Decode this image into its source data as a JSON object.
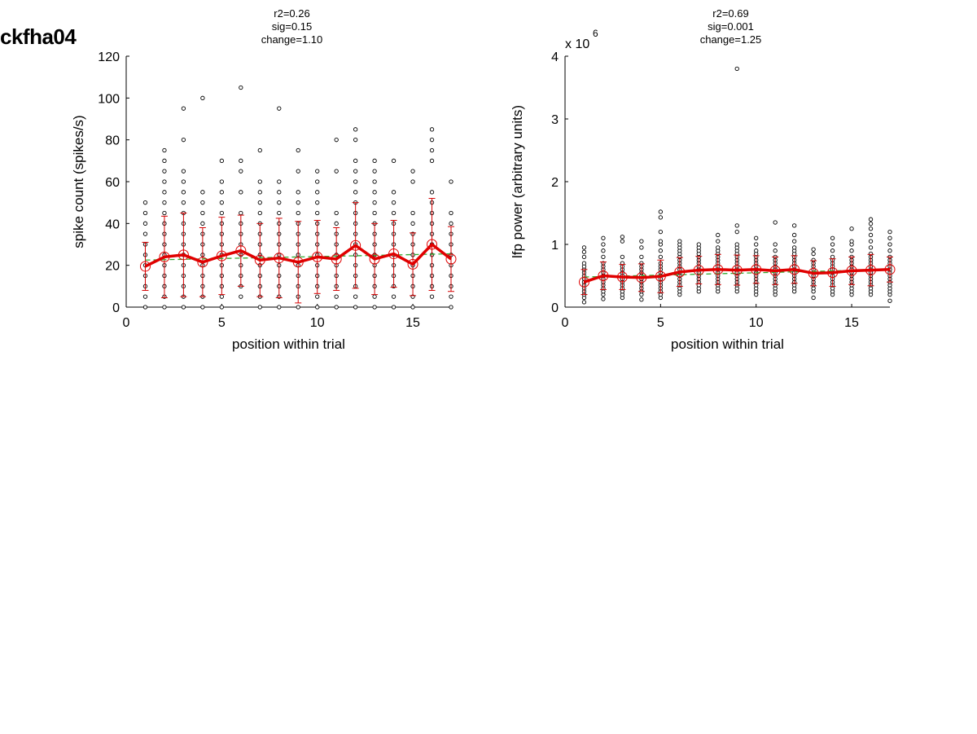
{
  "figure": {
    "title": "ckfha04"
  },
  "chart_data": [
    {
      "type": "scatter",
      "title_lines": [
        "r2=0.26",
        "sig=0.15",
        "change=1.10"
      ],
      "xlabel": "position within trial",
      "ylabel": "spike count (spikes/s)",
      "exponent_label": "",
      "xlim": [
        0,
        17
      ],
      "ylim": [
        0,
        120
      ],
      "xticks": [
        0,
        5,
        10,
        15
      ],
      "yticks": [
        0,
        20,
        40,
        60,
        80,
        100,
        120
      ],
      "ytick_labels": [
        "0",
        "20",
        "40",
        "60",
        "80",
        "100",
        "120"
      ],
      "mean": {
        "x": [
          1,
          2,
          3,
          4,
          5,
          6,
          7,
          8,
          9,
          10,
          11,
          12,
          13,
          14,
          15,
          16,
          17
        ],
        "y": [
          19.5,
          24,
          25,
          21.5,
          24.5,
          27,
          22.5,
          23.5,
          21.5,
          24,
          23,
          29.5,
          23,
          25.5,
          20.5,
          30,
          23
        ]
      },
      "error": [
        11.5,
        19.5,
        20,
        16.5,
        18.5,
        17,
        17.5,
        19,
        19.5,
        17.5,
        15,
        20.5,
        17,
        16,
        15,
        22,
        15.5
      ],
      "fit": {
        "x": [
          1,
          17
        ],
        "y": [
          22.5,
          25.5
        ]
      },
      "points": [
        {
          "x": 1,
          "y": [
            0,
            5,
            10,
            15,
            20,
            25,
            30,
            35,
            40,
            45,
            50
          ]
        },
        {
          "x": 2,
          "y": [
            0,
            5,
            10,
            15,
            20,
            25,
            30,
            35,
            40,
            45,
            50,
            55,
            60,
            65,
            70,
            75
          ]
        },
        {
          "x": 3,
          "y": [
            0,
            5,
            10,
            15,
            20,
            25,
            30,
            35,
            40,
            45,
            50,
            55,
            60,
            65,
            80,
            95
          ]
        },
        {
          "x": 4,
          "y": [
            0,
            5,
            10,
            15,
            20,
            25,
            30,
            35,
            40,
            45,
            50,
            55,
            100
          ]
        },
        {
          "x": 5,
          "y": [
            0,
            5,
            10,
            15,
            20,
            25,
            30,
            35,
            40,
            45,
            50,
            55,
            60,
            70
          ]
        },
        {
          "x": 6,
          "y": [
            5,
            10,
            15,
            20,
            25,
            30,
            35,
            40,
            45,
            55,
            65,
            70,
            105
          ]
        },
        {
          "x": 7,
          "y": [
            0,
            5,
            10,
            15,
            20,
            25,
            30,
            35,
            40,
            45,
            50,
            55,
            60,
            75
          ]
        },
        {
          "x": 8,
          "y": [
            0,
            5,
            10,
            15,
            20,
            25,
            30,
            35,
            40,
            45,
            50,
            55,
            60,
            95
          ]
        },
        {
          "x": 9,
          "y": [
            0,
            5,
            10,
            15,
            20,
            25,
            30,
            35,
            40,
            45,
            50,
            55,
            65,
            75
          ]
        },
        {
          "x": 10,
          "y": [
            0,
            5,
            10,
            15,
            20,
            25,
            30,
            35,
            40,
            45,
            50,
            55,
            60,
            65
          ]
        },
        {
          "x": 11,
          "y": [
            0,
            5,
            10,
            15,
            20,
            25,
            30,
            35,
            40,
            45,
            65,
            80
          ]
        },
        {
          "x": 12,
          "y": [
            0,
            5,
            10,
            15,
            20,
            25,
            30,
            35,
            40,
            45,
            50,
            55,
            60,
            65,
            70,
            80,
            85
          ]
        },
        {
          "x": 13,
          "y": [
            0,
            5,
            10,
            15,
            20,
            25,
            30,
            35,
            40,
            45,
            50,
            55,
            60,
            65,
            70
          ]
        },
        {
          "x": 14,
          "y": [
            0,
            5,
            10,
            15,
            20,
            25,
            30,
            35,
            40,
            45,
            50,
            55,
            70
          ]
        },
        {
          "x": 15,
          "y": [
            0,
            5,
            10,
            15,
            20,
            25,
            30,
            35,
            40,
            45,
            60,
            65
          ]
        },
        {
          "x": 16,
          "y": [
            5,
            10,
            15,
            20,
            25,
            30,
            35,
            40,
            45,
            50,
            55,
            70,
            75,
            80,
            85
          ]
        },
        {
          "x": 17,
          "y": [
            0,
            5,
            10,
            15,
            20,
            25,
            30,
            35,
            40,
            45,
            60
          ]
        }
      ]
    },
    {
      "type": "scatter",
      "title_lines": [
        "r2=0.69",
        "sig=0.001",
        "change=1.25"
      ],
      "xlabel": "position within trial",
      "ylabel": "lfp power (arbitrary units)",
      "exponent_label": "x 10",
      "exponent_sup": "6",
      "xlim": [
        0,
        17
      ],
      "ylim": [
        0,
        4000000
      ],
      "xticks": [
        0,
        5,
        10,
        15
      ],
      "yticks": [
        0,
        1000000,
        2000000,
        3000000,
        4000000
      ],
      "ytick_labels": [
        "0",
        "1",
        "2",
        "3",
        "4"
      ],
      "mean": {
        "x": [
          1,
          2,
          3,
          4,
          5,
          6,
          7,
          8,
          9,
          10,
          11,
          12,
          13,
          14,
          15,
          16,
          17
        ],
        "y": [
          400000,
          500000,
          480000,
          470000,
          490000,
          560000,
          590000,
          600000,
          590000,
          600000,
          580000,
          600000,
          540000,
          550000,
          580000,
          590000,
          600000
        ]
      },
      "error": [
        200000,
        220000,
        200000,
        220000,
        260000,
        230000,
        220000,
        240000,
        240000,
        220000,
        220000,
        220000,
        200000,
        220000,
        220000,
        250000,
        200000
      ],
      "fit": {
        "x": [
          1,
          17
        ],
        "y": [
          480000,
          600000
        ]
      },
      "points": [
        {
          "x": 1,
          "y": [
            80000,
            150000,
            200000,
            250000,
            300000,
            350000,
            400000,
            450000,
            500000,
            550000,
            600000,
            650000,
            700000,
            800000,
            880000,
            950000
          ]
        },
        {
          "x": 2,
          "y": [
            130000,
            200000,
            250000,
            300000,
            350000,
            400000,
            450000,
            500000,
            550000,
            600000,
            650000,
            700000,
            800000,
            900000,
            1000000,
            1100000
          ]
        },
        {
          "x": 3,
          "y": [
            150000,
            200000,
            250000,
            300000,
            350000,
            400000,
            450000,
            500000,
            550000,
            600000,
            650000,
            700000,
            800000,
            1050000,
            1120000
          ]
        },
        {
          "x": 4,
          "y": [
            120000,
            200000,
            250000,
            300000,
            350000,
            400000,
            450000,
            500000,
            550000,
            600000,
            650000,
            700000,
            800000,
            950000,
            1050000
          ]
        },
        {
          "x": 5,
          "y": [
            150000,
            200000,
            250000,
            300000,
            350000,
            400000,
            450000,
            500000,
            550000,
            600000,
            650000,
            700000,
            800000,
            900000,
            1000000,
            1050000,
            1200000,
            1430000,
            1520000
          ]
        },
        {
          "x": 6,
          "y": [
            200000,
            250000,
            300000,
            350000,
            400000,
            450000,
            500000,
            550000,
            600000,
            650000,
            700000,
            750000,
            800000,
            850000,
            900000,
            950000,
            1000000,
            1050000
          ]
        },
        {
          "x": 7,
          "y": [
            250000,
            300000,
            350000,
            400000,
            450000,
            500000,
            550000,
            600000,
            650000,
            700000,
            750000,
            800000,
            850000,
            900000,
            950000,
            1000000
          ]
        },
        {
          "x": 8,
          "y": [
            250000,
            300000,
            350000,
            400000,
            450000,
            500000,
            550000,
            600000,
            650000,
            700000,
            750000,
            800000,
            850000,
            900000,
            950000,
            1050000,
            1150000
          ]
        },
        {
          "x": 9,
          "y": [
            250000,
            300000,
            350000,
            400000,
            450000,
            500000,
            550000,
            600000,
            650000,
            700000,
            750000,
            800000,
            850000,
            900000,
            950000,
            1000000,
            1200000,
            1300000,
            3800000
          ]
        },
        {
          "x": 10,
          "y": [
            200000,
            250000,
            300000,
            350000,
            400000,
            450000,
            500000,
            550000,
            600000,
            650000,
            700000,
            750000,
            800000,
            850000,
            900000,
            1000000,
            1100000
          ]
        },
        {
          "x": 11,
          "y": [
            200000,
            250000,
            300000,
            350000,
            400000,
            450000,
            500000,
            550000,
            600000,
            650000,
            700000,
            750000,
            800000,
            900000,
            1000000,
            1350000
          ]
        },
        {
          "x": 12,
          "y": [
            250000,
            300000,
            350000,
            400000,
            450000,
            500000,
            550000,
            600000,
            650000,
            700000,
            750000,
            800000,
            850000,
            900000,
            950000,
            1050000,
            1150000,
            1300000
          ]
        },
        {
          "x": 13,
          "y": [
            150000,
            250000,
            300000,
            350000,
            400000,
            450000,
            500000,
            550000,
            600000,
            650000,
            700000,
            750000,
            850000,
            920000
          ]
        },
        {
          "x": 14,
          "y": [
            200000,
            250000,
            300000,
            350000,
            400000,
            450000,
            500000,
            550000,
            600000,
            650000,
            700000,
            750000,
            800000,
            900000,
            1000000,
            1100000
          ]
        },
        {
          "x": 15,
          "y": [
            200000,
            250000,
            300000,
            350000,
            400000,
            450000,
            500000,
            550000,
            600000,
            650000,
            700000,
            750000,
            800000,
            900000,
            1000000,
            1050000,
            1250000
          ]
        },
        {
          "x": 16,
          "y": [
            200000,
            250000,
            300000,
            350000,
            400000,
            450000,
            500000,
            550000,
            600000,
            650000,
            700000,
            750000,
            800000,
            850000,
            950000,
            1050000,
            1150000,
            1250000,
            1330000,
            1400000
          ]
        },
        {
          "x": 17,
          "y": [
            100000,
            200000,
            250000,
            300000,
            350000,
            400000,
            450000,
            500000,
            550000,
            600000,
            650000,
            700000,
            750000,
            800000,
            900000,
            1000000,
            1100000,
            1200000
          ]
        }
      ]
    }
  ]
}
